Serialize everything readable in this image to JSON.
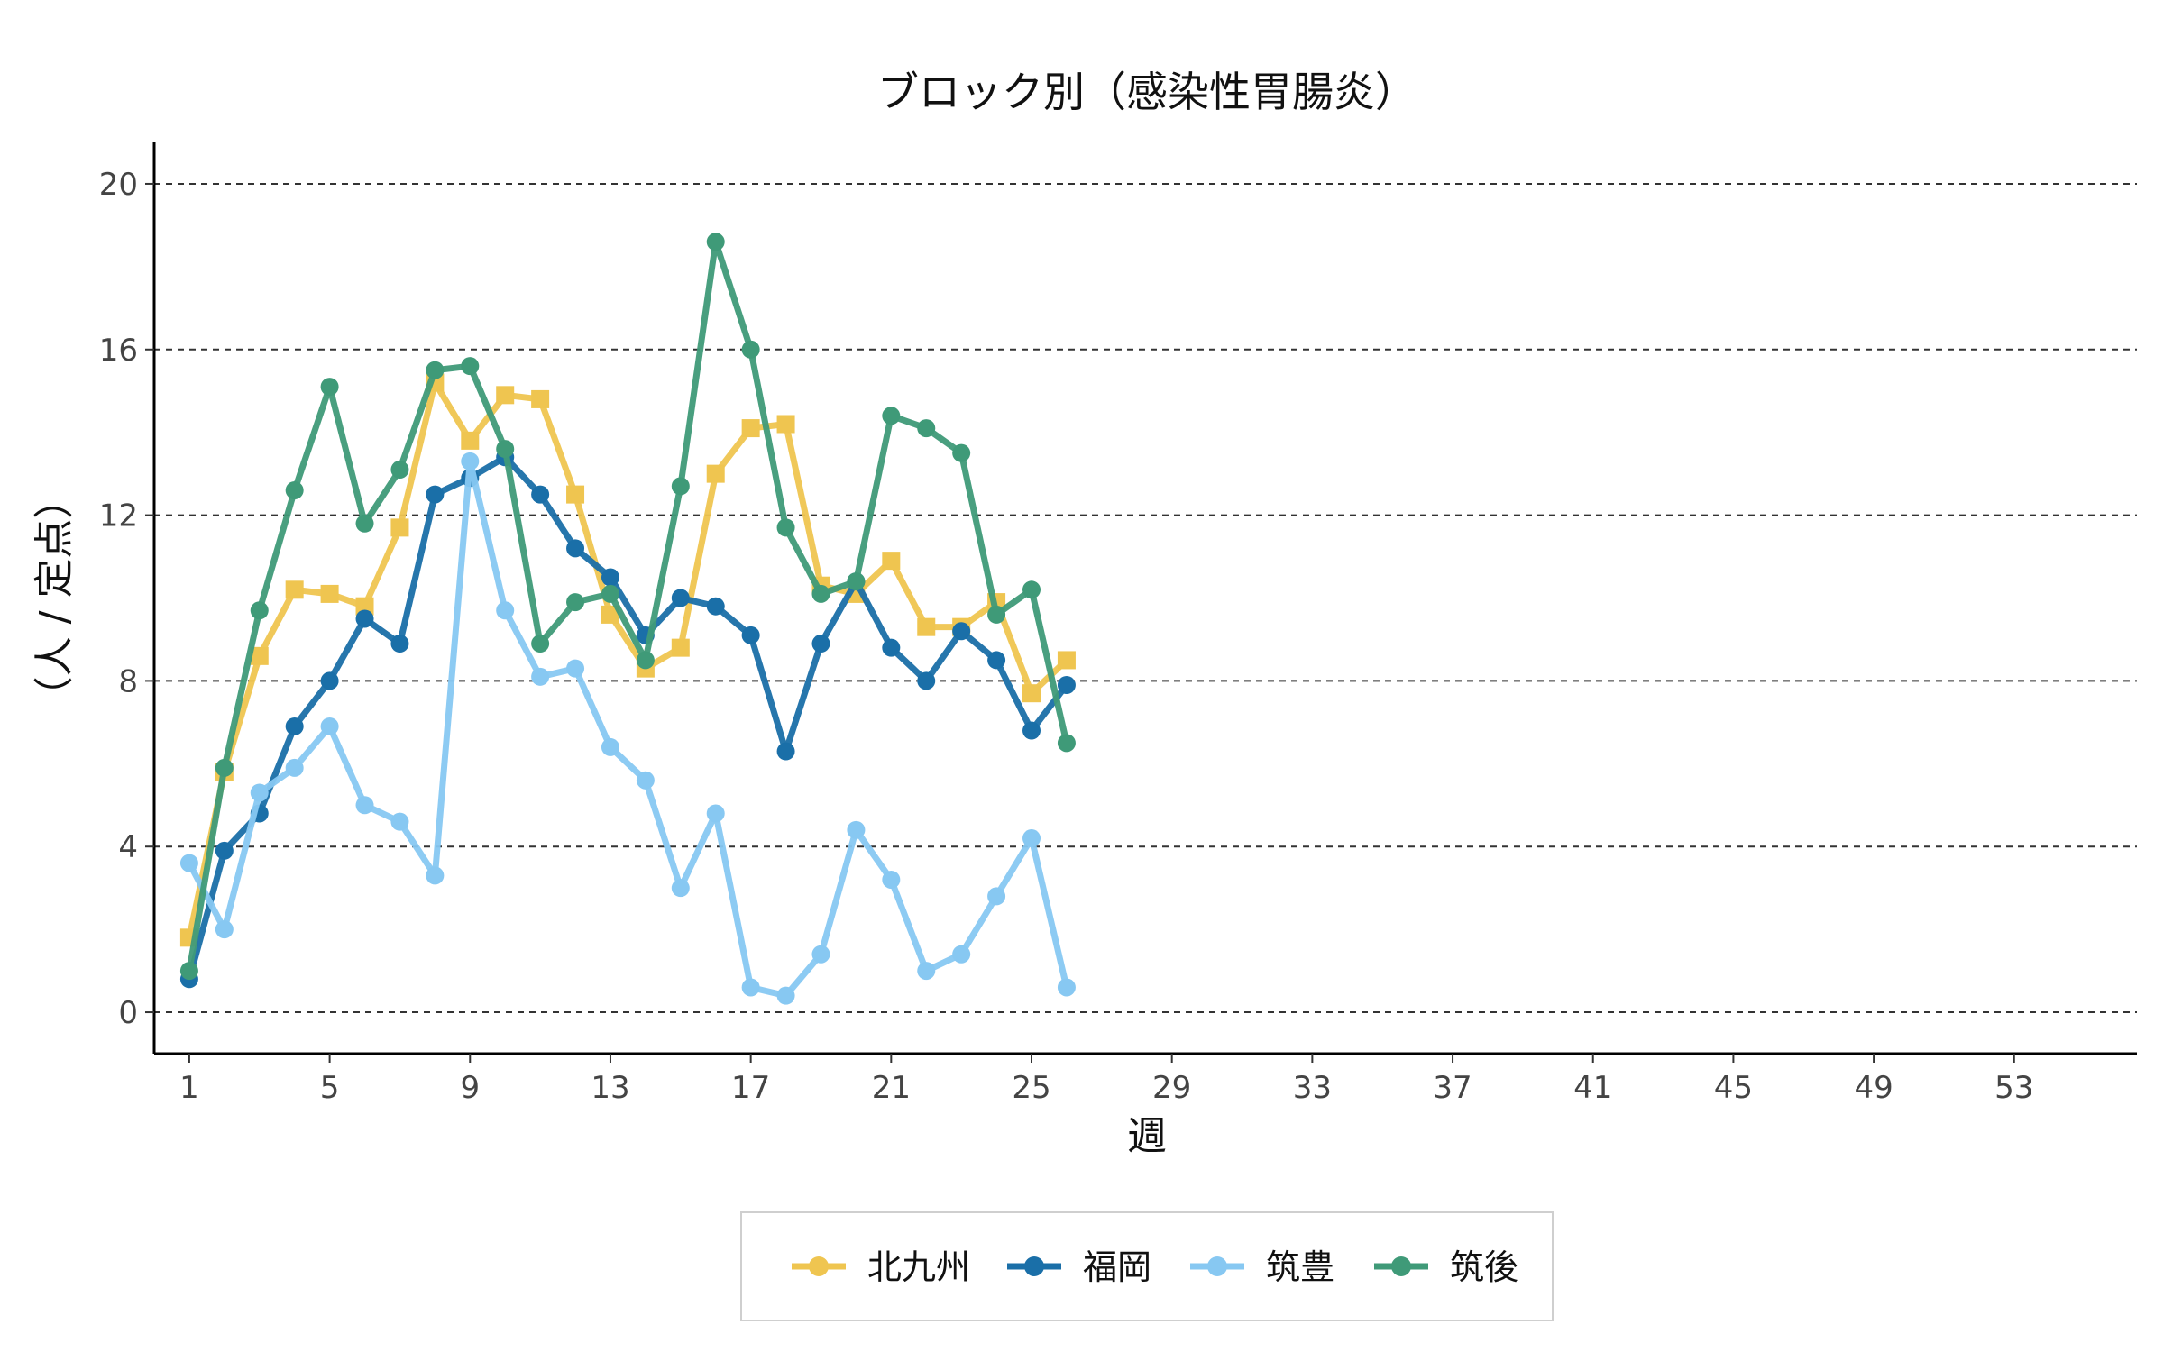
{
  "chart_data": {
    "type": "line",
    "title": "ブロック別（感染性胃腸炎）",
    "xlabel": "週",
    "ylabel": "（人 / 定点）",
    "xlim": [
      0,
      56.5
    ],
    "ylim": [
      -1,
      21
    ],
    "x_ticks": [
      1,
      5,
      9,
      13,
      17,
      21,
      25,
      29,
      33,
      37,
      41,
      45,
      49,
      53
    ],
    "y_ticks": [
      0,
      4,
      8,
      12,
      16,
      20
    ],
    "grid": "horizontal-dashed",
    "legend_position": "bottom",
    "x": [
      1,
      2,
      3,
      4,
      5,
      6,
      7,
      8,
      9,
      10,
      11,
      12,
      13,
      14,
      15,
      16,
      17,
      18,
      19,
      20,
      21,
      22,
      23,
      24,
      25,
      26
    ],
    "series": [
      {
        "name": "北九州",
        "color": "#efc550",
        "marker": "square",
        "values": [
          1.8,
          5.8,
          8.6,
          10.2,
          10.1,
          9.8,
          11.7,
          15.2,
          13.8,
          14.9,
          14.8,
          12.5,
          9.6,
          8.3,
          8.8,
          13.0,
          14.1,
          14.2,
          10.3,
          10.1,
          10.9,
          9.3,
          9.3,
          9.9,
          7.7,
          8.5
        ]
      },
      {
        "name": "福岡",
        "color": "#1a6fa8",
        "marker": "circle",
        "values": [
          0.8,
          3.9,
          4.8,
          6.9,
          8.0,
          9.5,
          8.9,
          12.5,
          12.9,
          13.4,
          12.5,
          11.2,
          10.5,
          9.1,
          10.0,
          9.8,
          9.1,
          6.3,
          8.9,
          10.4,
          8.8,
          8.0,
          9.2,
          8.5,
          6.8,
          7.9
        ]
      },
      {
        "name": "筑豊",
        "color": "#87c8f2",
        "marker": "circle",
        "values": [
          3.6,
          2.0,
          5.3,
          5.9,
          6.9,
          5.0,
          4.6,
          3.3,
          13.3,
          9.7,
          8.1,
          8.3,
          6.4,
          5.6,
          3.0,
          4.8,
          0.6,
          0.4,
          1.4,
          4.4,
          3.2,
          1.0,
          1.4,
          2.8,
          4.2,
          0.6
        ]
      },
      {
        "name": "筑後",
        "color": "#3f9a78",
        "marker": "circle",
        "values": [
          1.0,
          5.9,
          9.7,
          12.6,
          15.1,
          11.8,
          13.1,
          15.5,
          15.6,
          13.6,
          8.9,
          9.9,
          10.1,
          8.5,
          12.7,
          18.6,
          16.0,
          11.7,
          10.1,
          10.4,
          14.4,
          14.1,
          13.5,
          9.6,
          10.2,
          6.5
        ]
      }
    ]
  }
}
